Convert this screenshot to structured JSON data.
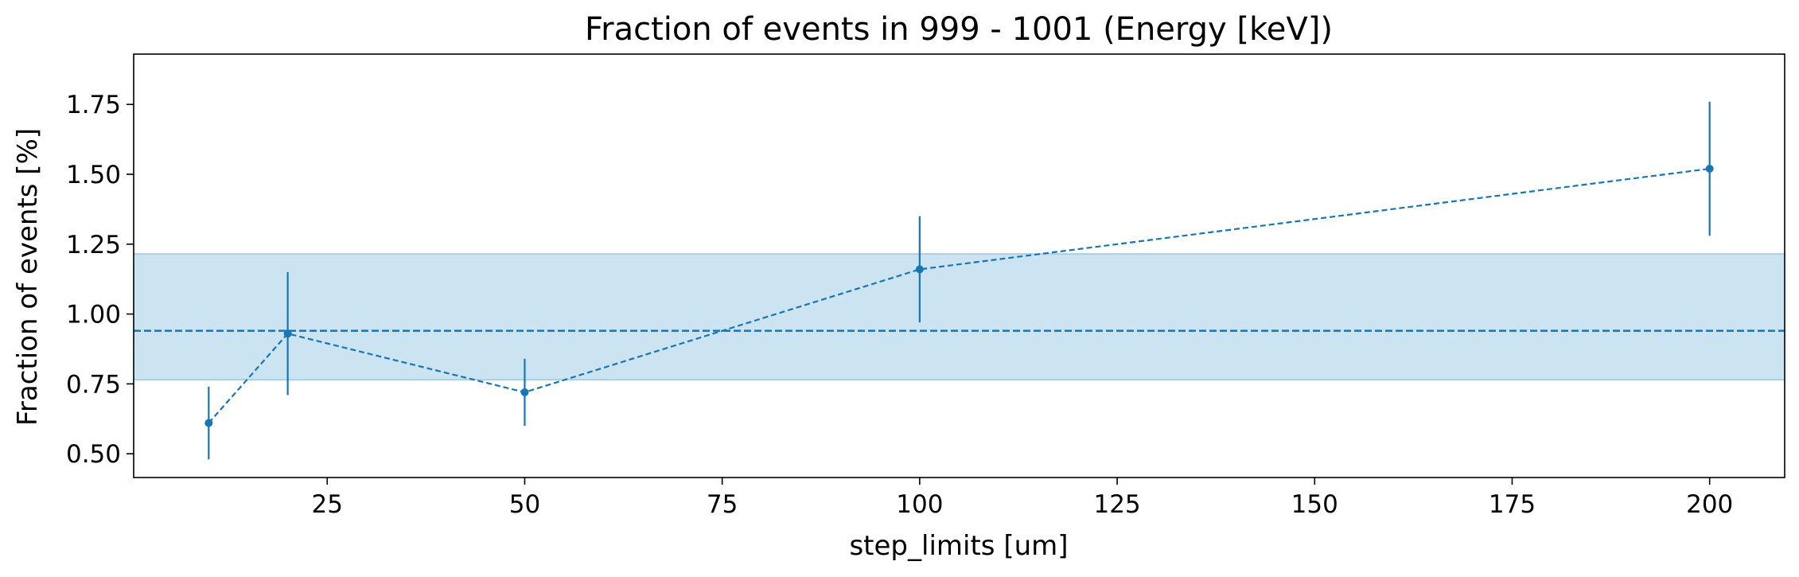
{
  "chart_data": {
    "type": "line",
    "title": "Fraction of events in 999 - 1001 (Energy [keV])",
    "xlabel": "step_limits [um]",
    "ylabel": "Fraction of events [%]",
    "xlim": [
      0.5,
      209.5
    ],
    "ylim": [
      0.415,
      1.93
    ],
    "xticks": [
      25,
      50,
      75,
      100,
      125,
      150,
      175,
      200
    ],
    "yticks": [
      0.5,
      0.75,
      1.0,
      1.25,
      1.5,
      1.75
    ],
    "xtick_labels": [
      "25",
      "50",
      "75",
      "100",
      "125",
      "150",
      "175",
      "200"
    ],
    "ytick_labels": [
      "0.50",
      "0.75",
      "1.00",
      "1.25",
      "1.50",
      "1.75"
    ],
    "grid": false,
    "series": [
      {
        "x": [
          10,
          20,
          50,
          100,
          200
        ],
        "y": [
          0.61,
          0.93,
          0.72,
          1.16,
          1.52
        ],
        "yerr": [
          0.13,
          0.22,
          0.12,
          0.19,
          0.24
        ],
        "style": "dashed",
        "marker": "circle"
      }
    ],
    "mean_line": {
      "y": 0.94,
      "style": "dashed"
    },
    "band": {
      "y_low": 0.765,
      "y_high": 1.215
    },
    "colors": {
      "series": "#1776b6",
      "band": "#cce3f1",
      "band_edge": "#a9cfe8"
    }
  }
}
